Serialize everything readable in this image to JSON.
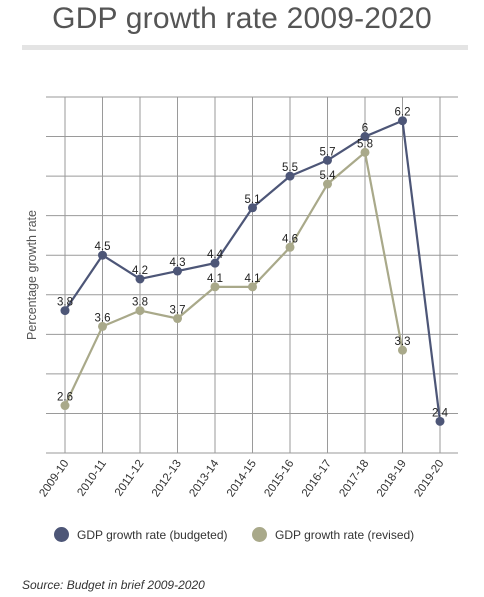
{
  "title": "GDP growth rate 2009-2020",
  "source": "Source: Budget in brief 2009-2020",
  "colors": {
    "budgeted": "#4d5677",
    "revised": "#a9a98a",
    "grid": "#9a9a9a"
  },
  "chart_data": {
    "type": "line",
    "title": "GDP growth rate 2009-2020",
    "ylabel": "Percentage growth rate",
    "xlabel": "",
    "categories": [
      "2009-10",
      "2010-11",
      "2011-12",
      "2012-13",
      "2013-14",
      "2014-15",
      "2015-16",
      "2016-17",
      "2017-18",
      "2018-19",
      "2019-20"
    ],
    "ylim": [
      2.0,
      6.5
    ],
    "grid": true,
    "legend": "bottom",
    "series": [
      {
        "name": "GDP growth rate (budgeted)",
        "values": [
          3.8,
          4.5,
          4.2,
          4.3,
          4.4,
          5.1,
          5.5,
          5.7,
          6,
          6.2,
          2.4
        ],
        "labels": [
          "3.8",
          "4.5",
          "4.2",
          "4.3",
          "4.4",
          "5.1",
          "5.5",
          "5.7",
          "6",
          "6.2",
          "2.4"
        ]
      },
      {
        "name": "GDP growth rate (revised)",
        "values": [
          2.6,
          3.6,
          3.8,
          3.7,
          4.1,
          4.1,
          4.6,
          5.4,
          5.8,
          3.3,
          null
        ],
        "labels": [
          "2.6",
          "3.6",
          "3.8",
          "3.7",
          "4.1",
          "4.1",
          "4.6",
          "5.4",
          "5.8",
          "3.3",
          ""
        ]
      }
    ]
  }
}
